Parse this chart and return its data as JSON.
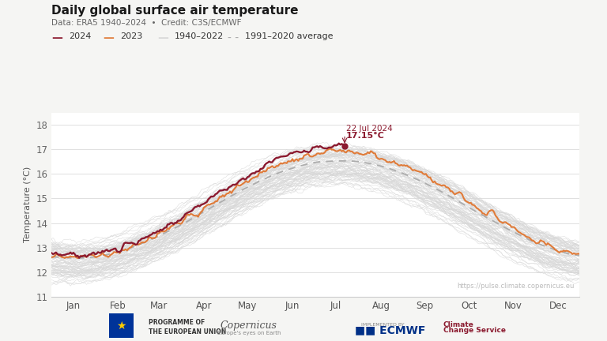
{
  "title": "Daily global surface air temperature",
  "subtitle": "Data: ERA5 1940–2024  •  Credit: C3S/ECMWF",
  "ylabel": "Temperature (°C)",
  "background_color": "#f5f5f3",
  "plot_bg_color": "#ffffff",
  "ylim": [
    11,
    18.5
  ],
  "yticks": [
    11,
    12,
    13,
    14,
    15,
    16,
    17,
    18
  ],
  "color_2024": "#8B1A2F",
  "color_2023": "#E07B39",
  "color_historical": "#d8d8d8",
  "color_avg_dashed": "#aaaaaa",
  "annotation_day": 203,
  "annotation_temp": 17.15,
  "url_text": "https://pulse.climate.copernicus.eu",
  "peak_label_line1": "22 Jul 2024",
  "peak_label_line2": "17.15°C"
}
